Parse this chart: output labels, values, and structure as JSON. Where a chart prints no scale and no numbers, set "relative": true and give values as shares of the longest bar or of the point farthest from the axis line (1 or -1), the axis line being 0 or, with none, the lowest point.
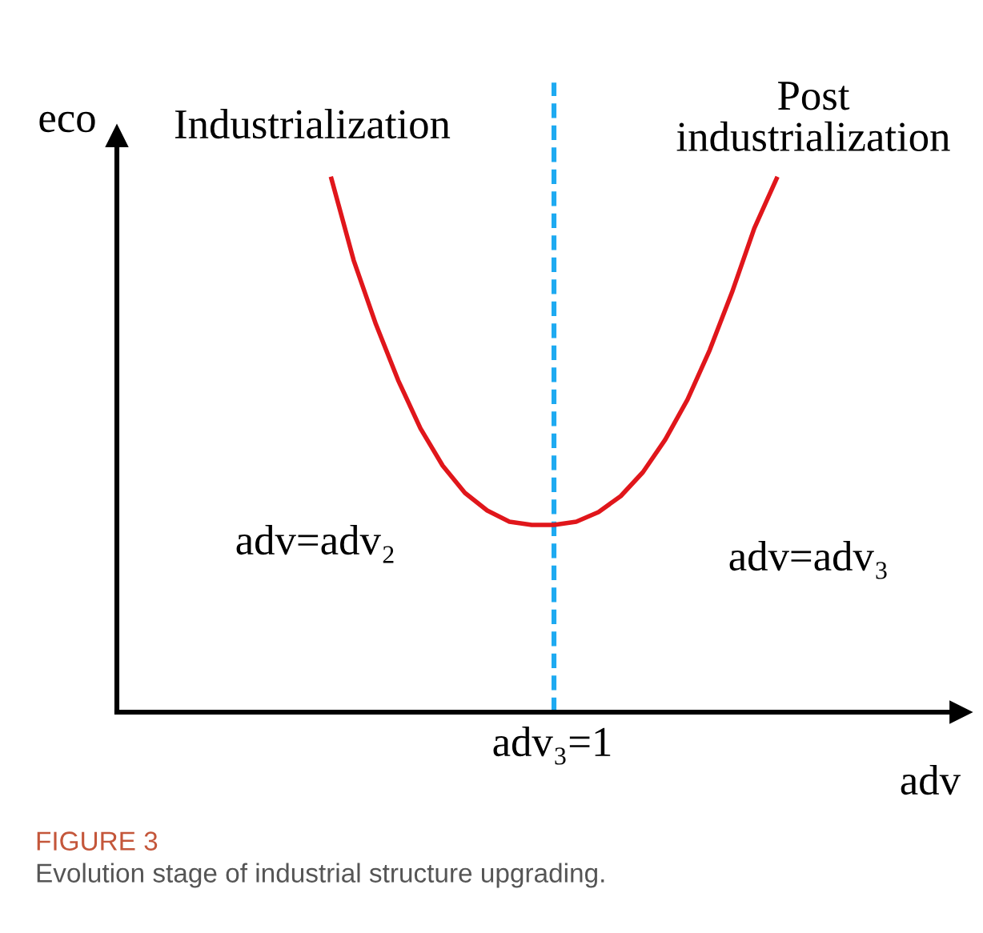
{
  "chart_data": {
    "type": "line",
    "relative": true,
    "xlabel": "adv",
    "categories": [
      null,
      null,
      null,
      null,
      null,
      null,
      null,
      null,
      null,
      null,
      null,
      null,
      null,
      null,
      null,
      null,
      null,
      null,
      null,
      null,
      null
    ],
    "series": [
      {
        "color": "#e0161b",
        "values": [
          1.0,
          0.847,
          0.727,
          0.622,
          0.532,
          0.462,
          0.411,
          0.378,
          0.357,
          0.351,
          0.351,
          0.357,
          0.375,
          0.405,
          0.45,
          0.511,
          0.586,
          0.679,
          0.787,
          0.907,
          1.0
        ]
      }
    ],
    "annotations": [
      "eco",
      "Industrialization",
      "Post\nindustrialization",
      "adv=adv₂",
      "adv=adv₃",
      "adv₃=1",
      "FIGURE 3",
      "Evolution stage of industrial structure upgrading."
    ],
    "marker": "none",
    "line_style": "solid"
  }
}
